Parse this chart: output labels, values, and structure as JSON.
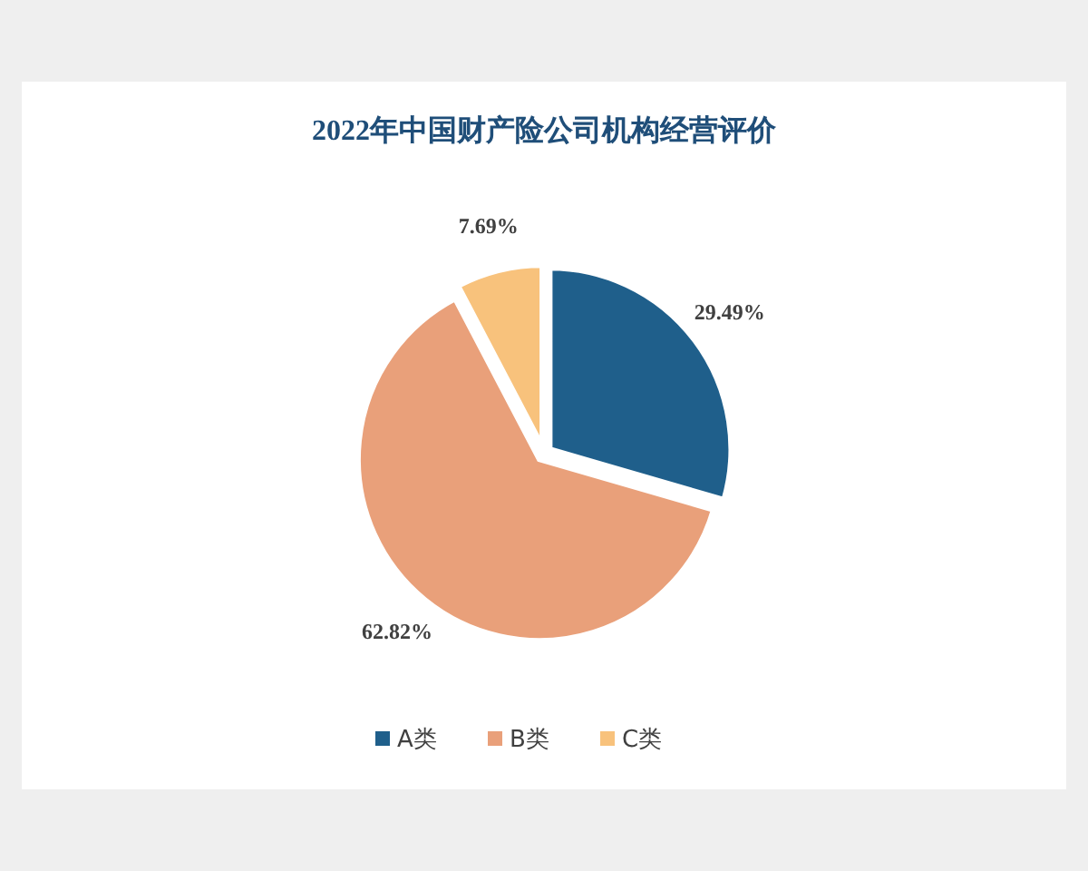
{
  "chart_data": {
    "type": "pie",
    "title": "2022年中国财产险公司机构经营评价",
    "categories": [
      "A类",
      "B类",
      "C类"
    ],
    "values": [
      29.49,
      62.82,
      7.69
    ],
    "value_labels": [
      "29.49%",
      "62.82%",
      "7.69%"
    ],
    "colors": [
      "#1f5f8b",
      "#e9a07a",
      "#f8c27c"
    ],
    "legend": "bottom"
  }
}
